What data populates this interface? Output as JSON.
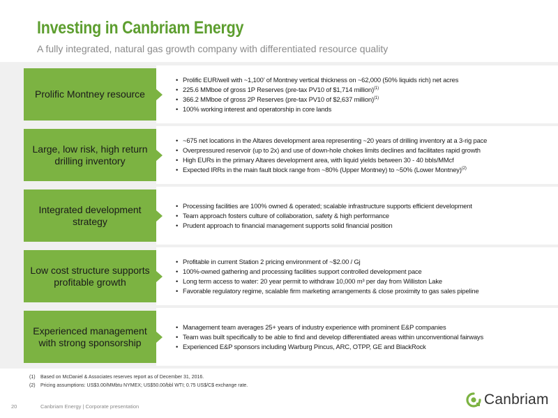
{
  "header": {
    "title": "Investing in Canbriam Energy",
    "subtitle": "A fully integrated, natural gas growth company with differentiated resource quality"
  },
  "rows": [
    {
      "label": "Prolific Montney resource",
      "bullets": [
        {
          "text": "Prolific EUR/well with ~1,100’ of Montney vertical thickness on ~62,000 (50% liquids rich) net acres",
          "sup": ""
        },
        {
          "text": "225.6 MMboe of gross 1P Reserves (pre-tax PV10 of $1,714 million)",
          "sup": "(1)"
        },
        {
          "text": "366.2 MMboe of gross 2P Reserves (pre-tax PV10 of $2,637 million)",
          "sup": "(1)"
        },
        {
          "text": "100% working interest and operatorship in core lands",
          "sup": ""
        }
      ]
    },
    {
      "label": "Large, low risk, high return drilling inventory",
      "bullets": [
        {
          "text": "~675 net locations in the Altares development area representing ~20 years of drilling inventory at a 3-rig pace",
          "sup": ""
        },
        {
          "text": "Overpressured reservoir (up to 2x) and use of down-hole chokes limits declines and facilitates rapid growth",
          "sup": ""
        },
        {
          "text": "High EURs in the primary Altares development area, with liquid yields between 30 - 40 bbls/MMcf",
          "sup": ""
        },
        {
          "text": "Expected IRRs in the main fault block range from ~80% (Upper Montney) to ~50% (Lower Montney)",
          "sup": "(2)"
        }
      ]
    },
    {
      "label": "Integrated development strategy",
      "bullets": [
        {
          "text": "Processing facilities are 100% owned & operated; scalable infrastructure supports efficient development",
          "sup": ""
        },
        {
          "text": "Team approach fosters culture of collaboration, safety & high performance",
          "sup": ""
        },
        {
          "text": "Prudent approach to financial management supports solid financial position",
          "sup": ""
        }
      ]
    },
    {
      "label": "Low cost structure supports profitable growth",
      "bullets": [
        {
          "text": "Profitable in current Station 2 pricing environment of ~$2.00 / Gj",
          "sup": ""
        },
        {
          "text": "100%-owned gathering and processing facilities support controlled development pace",
          "sup": ""
        },
        {
          "text": "Long term access to water: 20 year permit to withdraw 10,000 m³ per day from Williston Lake",
          "sup": ""
        },
        {
          "text": "Favorable regulatory regime, scalable firm marketing arrangements & close proximity to gas sales pipeline",
          "sup": ""
        }
      ]
    },
    {
      "label": "Experienced management with strong sponsorship",
      "bullets": [
        {
          "text": "Management team averages 25+ years of industry experience with prominent E&P companies",
          "sup": ""
        },
        {
          "text": "Team was built specifically to be able to find and develop differentiated areas within unconventional fairways",
          "sup": ""
        },
        {
          "text": "Experienced E&P sponsors including Warburg Pincus, ARC, OTPP, GE and BlackRock",
          "sup": ""
        }
      ]
    }
  ],
  "footnotes": [
    {
      "num": "(1)",
      "text": "Based on McDaniel & Associates reserves report as of December 31, 2016."
    },
    {
      "num": "(2)",
      "text": "Pricing assumptions: US$3.00/MMbtu NYMEX; US$50.00/bbl WTI; 0.75 US$/C$ exchange rate."
    }
  ],
  "footer": {
    "page_number": "20",
    "text": "Canbriam Energy  |  Corporate presentation",
    "logo_text": "Canbriam",
    "logo_icon": "canbriam-logo-icon",
    "accent_color": "#7cb342"
  }
}
